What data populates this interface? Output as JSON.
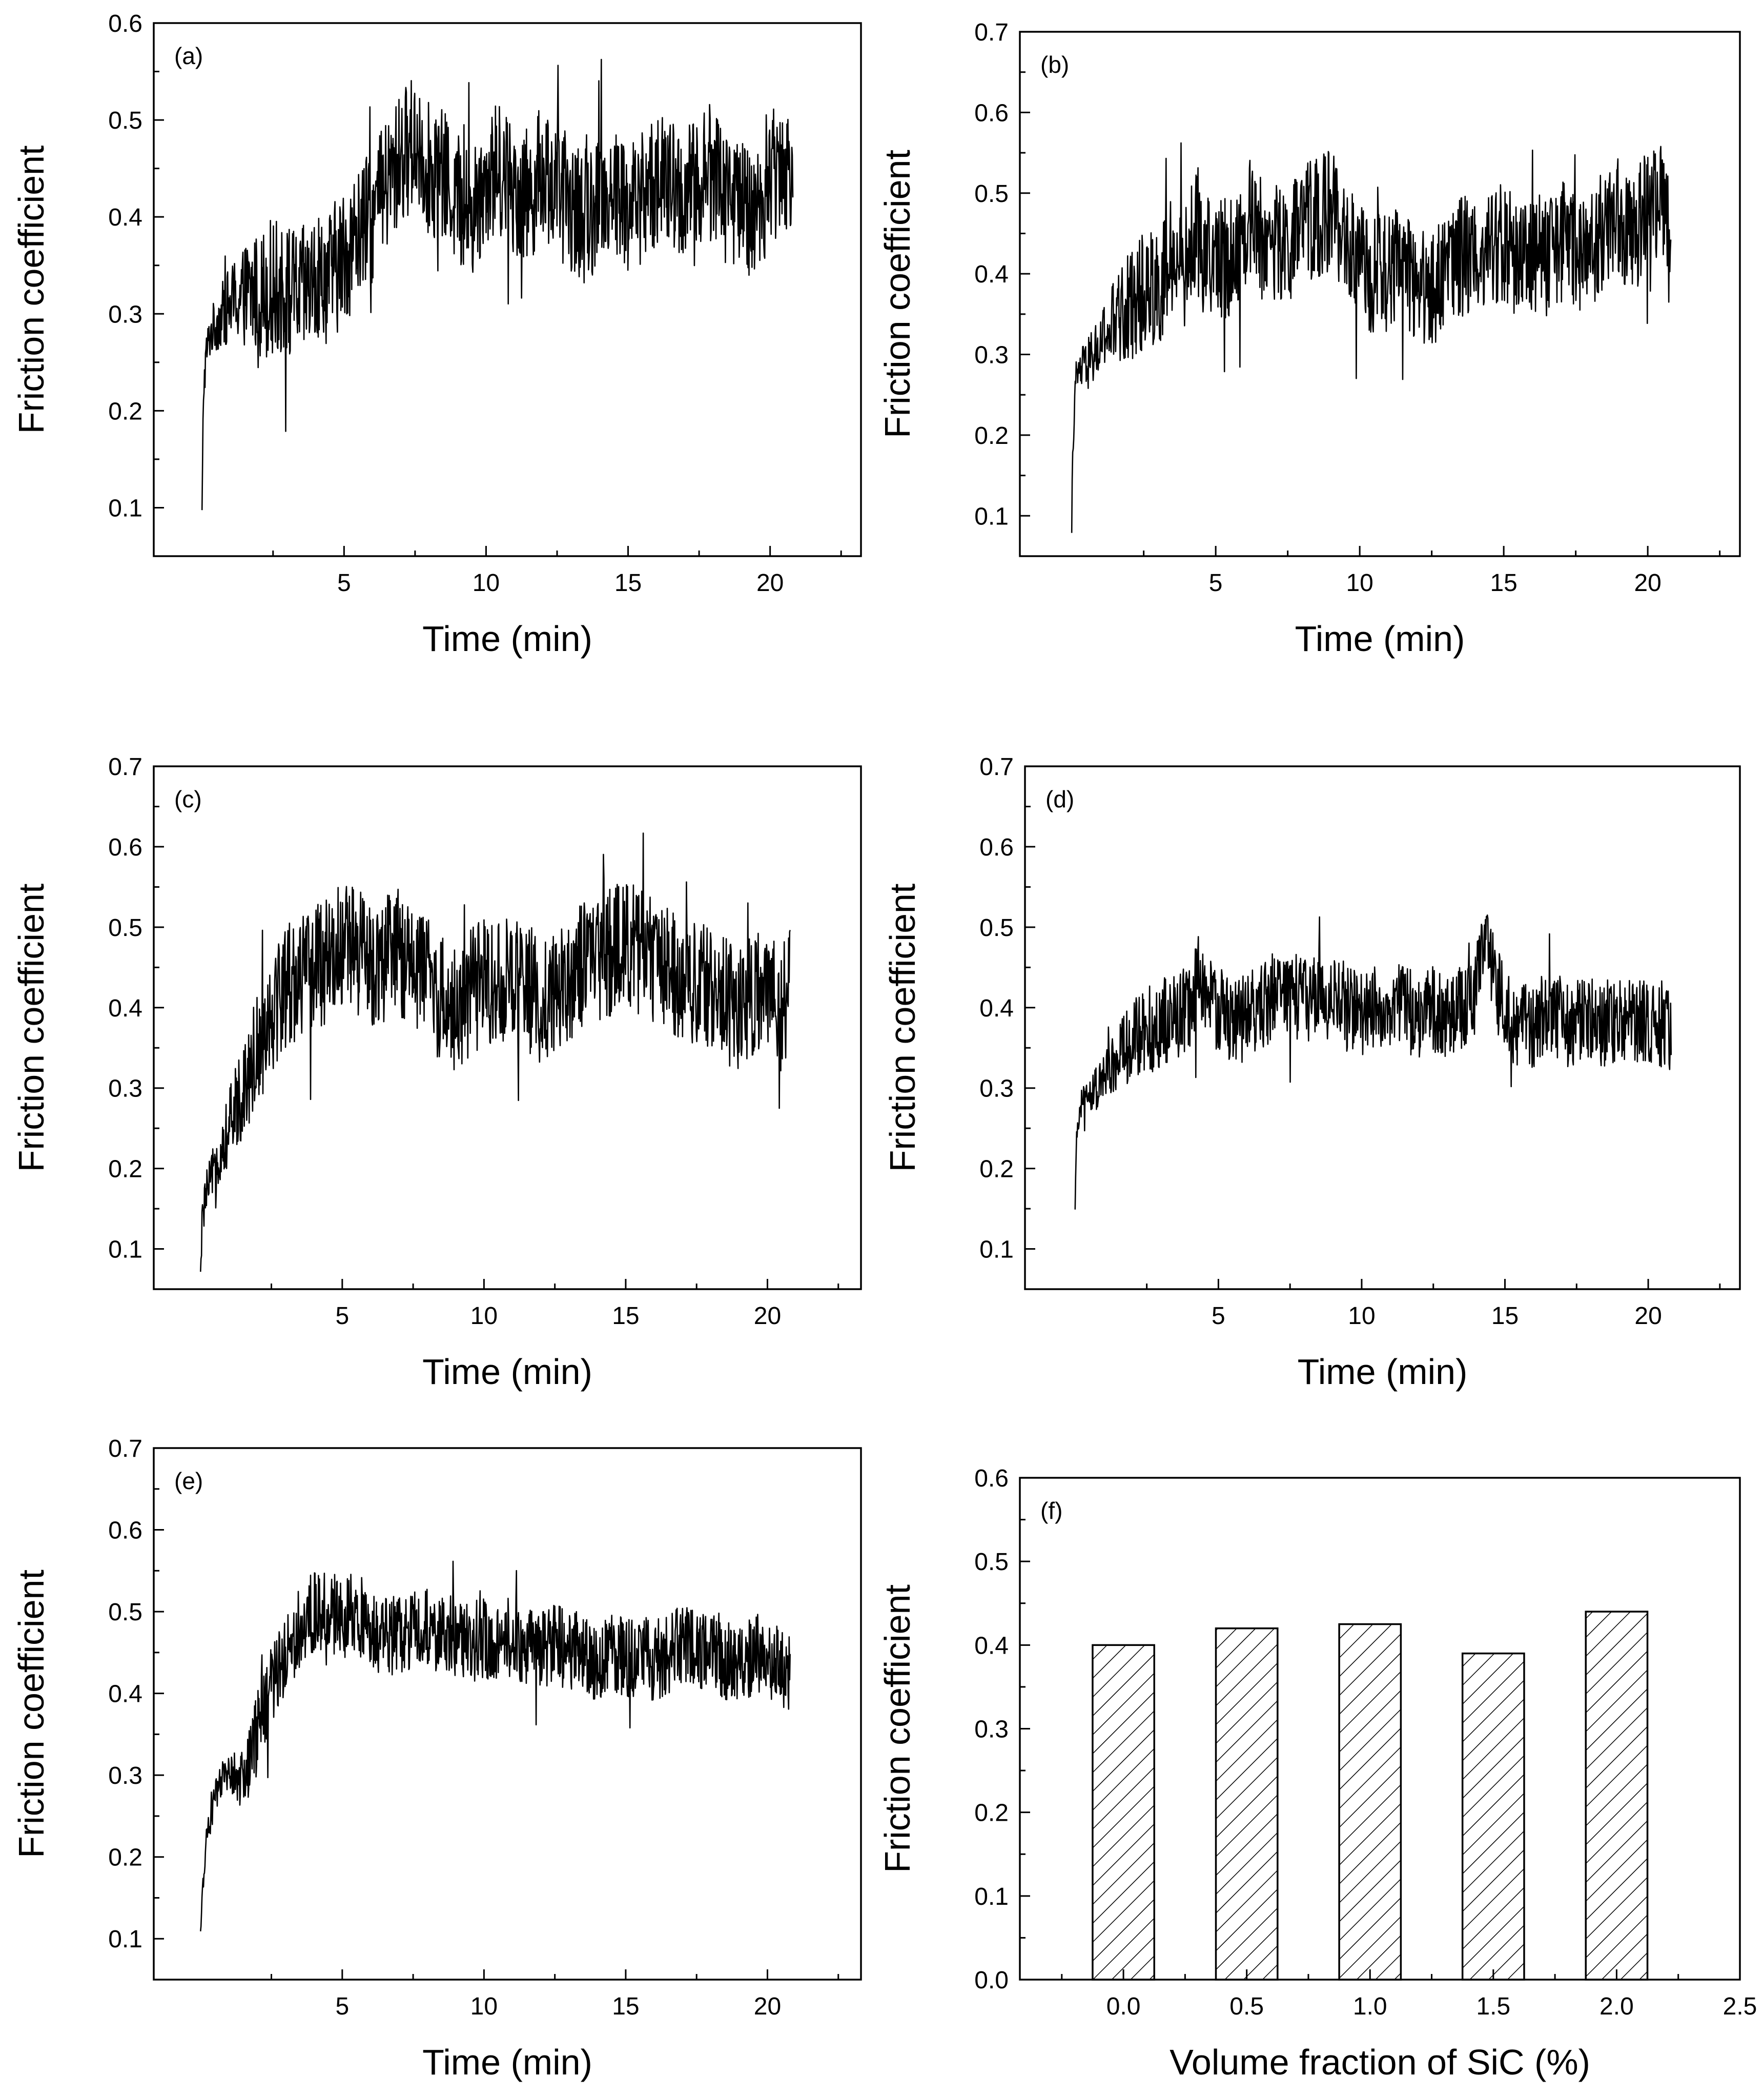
{
  "chart_data": [
    {
      "panel": "(a)",
      "type": "line",
      "xlabel": "Time (min)",
      "ylabel": "Friction coefficient",
      "xlim": [
        -1.7,
        23.2
      ],
      "ylim": [
        0.05,
        0.6
      ],
      "xticks": [
        5,
        10,
        15,
        20
      ],
      "yticks": [
        0.1,
        0.2,
        0.3,
        0.4,
        0.5,
        0.6
      ],
      "ytick_labels": [
        "0.1",
        "0.2",
        "0.3",
        "0.4",
        "0.5",
        "0.6"
      ],
      "series": [
        {
          "name": "(a)",
          "x": [
            0,
            0.05,
            0.15,
            0.3,
            0.5,
            1,
            1.5,
            2,
            2.5,
            3,
            3.5,
            4,
            4.5,
            5,
            5.5,
            6,
            6.5,
            7,
            7.5,
            8,
            8.5,
            9,
            9.5,
            10,
            10.5,
            11,
            11.5,
            12,
            12.5,
            13,
            13.5,
            14,
            14.5,
            15,
            15.5,
            16,
            16.5,
            17,
            17.5,
            18,
            18.5,
            19,
            19.5,
            20,
            20.5,
            20.8
          ],
          "y": [
            0.09,
            0.22,
            0.26,
            0.28,
            0.29,
            0.31,
            0.32,
            0.32,
            0.33,
            0.32,
            0.32,
            0.33,
            0.34,
            0.36,
            0.38,
            0.4,
            0.43,
            0.46,
            0.48,
            0.45,
            0.44,
            0.42,
            0.4,
            0.44,
            0.45,
            0.43,
            0.42,
            0.45,
            0.43,
            0.41,
            0.4,
            0.42,
            0.43,
            0.41,
            0.42,
            0.44,
            0.43,
            0.42,
            0.44,
            0.45,
            0.43,
            0.41,
            0.4,
            0.44,
            0.46,
            0.45
          ],
          "noise": 0.07
        }
      ]
    },
    {
      "panel": "(b)",
      "type": "line",
      "xlabel": "Time (min)",
      "ylabel": "Friction coefficient",
      "xlim": [
        -1.8,
        23.2
      ],
      "ylim": [
        0.05,
        0.7
      ],
      "xticks": [
        5,
        10,
        15,
        20
      ],
      "yticks": [
        0.1,
        0.2,
        0.3,
        0.4,
        0.5,
        0.6,
        0.7
      ],
      "ytick_labels": [
        "0.1",
        "0.2",
        "0.3",
        "0.4",
        "0.5",
        "0.6",
        "0.7"
      ],
      "series": [
        {
          "name": "(b)",
          "x": [
            0,
            0.05,
            0.15,
            0.3,
            0.6,
            1,
            1.5,
            2,
            2.5,
            3,
            3.5,
            4,
            4.3,
            4.6,
            5,
            5.5,
            6,
            6.3,
            6.6,
            7,
            7.5,
            8,
            8.5,
            9,
            9.5,
            10,
            10.5,
            11,
            11.5,
            12,
            12.5,
            13,
            13.5,
            14,
            14.5,
            15,
            15.5,
            16,
            16.5,
            17,
            17.5,
            18,
            18.5,
            19,
            19.5,
            20,
            20.5,
            20.8
          ],
          "y": [
            0.09,
            0.2,
            0.27,
            0.28,
            0.29,
            0.31,
            0.34,
            0.36,
            0.38,
            0.39,
            0.4,
            0.41,
            0.46,
            0.42,
            0.42,
            0.42,
            0.45,
            0.48,
            0.44,
            0.44,
            0.43,
            0.46,
            0.47,
            0.48,
            0.44,
            0.41,
            0.4,
            0.4,
            0.41,
            0.39,
            0.38,
            0.41,
            0.42,
            0.43,
            0.43,
            0.44,
            0.42,
            0.43,
            0.42,
            0.44,
            0.43,
            0.42,
            0.46,
            0.47,
            0.45,
            0.48,
            0.5,
            0.42
          ],
          "noise": 0.075
        }
      ]
    },
    {
      "panel": "(c)",
      "type": "line",
      "xlabel": "Time (min)",
      "ylabel": "Friction coefficient",
      "xlim": [
        -1.65,
        23.3
      ],
      "ylim": [
        0.05,
        0.7
      ],
      "xticks": [
        5,
        10,
        15,
        20
      ],
      "yticks": [
        0.1,
        0.2,
        0.3,
        0.4,
        0.5,
        0.6,
        0.7
      ],
      "ytick_labels": [
        "0.1",
        "0.2",
        "0.3",
        "0.4",
        "0.5",
        "0.6",
        "0.7"
      ],
      "series": [
        {
          "name": "(c)",
          "x": [
            0,
            0.05,
            0.2,
            0.5,
            1,
            1.5,
            2,
            2.5,
            3,
            3.5,
            4,
            4.5,
            5,
            5.5,
            6,
            6.5,
            7,
            7.5,
            8,
            8.5,
            9,
            9.5,
            10,
            10.5,
            11,
            11.5,
            12,
            12.5,
            13,
            13.5,
            14,
            14.5,
            15,
            15.5,
            16,
            16.5,
            17,
            17.5,
            18,
            18.5,
            19,
            19.5,
            20,
            20.5,
            20.8
          ],
          "y": [
            0.06,
            0.13,
            0.17,
            0.2,
            0.25,
            0.3,
            0.35,
            0.4,
            0.43,
            0.44,
            0.45,
            0.46,
            0.48,
            0.47,
            0.45,
            0.46,
            0.47,
            0.45,
            0.44,
            0.41,
            0.4,
            0.42,
            0.43,
            0.44,
            0.43,
            0.42,
            0.41,
            0.42,
            0.44,
            0.45,
            0.46,
            0.47,
            0.48,
            0.47,
            0.46,
            0.45,
            0.44,
            0.43,
            0.42,
            0.41,
            0.4,
            0.42,
            0.41,
            0.4,
            0.42
          ],
          "noise": 0.08
        }
      ]
    },
    {
      "panel": "(d)",
      "type": "line",
      "xlabel": "Time (min)",
      "ylabel": "Friction coefficient",
      "xlim": [
        -1.75,
        23.2
      ],
      "ylim": [
        0.05,
        0.7
      ],
      "xticks": [
        5,
        10,
        15,
        20
      ],
      "yticks": [
        0.1,
        0.2,
        0.3,
        0.4,
        0.5,
        0.6,
        0.7
      ],
      "ytick_labels": [
        "0.1",
        "0.2",
        "0.3",
        "0.4",
        "0.5",
        "0.6",
        "0.7"
      ],
      "series": [
        {
          "name": "(d)",
          "x": [
            0,
            0.05,
            0.2,
            0.5,
            1,
            1.5,
            2,
            2.5,
            3,
            3.5,
            4,
            4.3,
            4.6,
            5,
            5.5,
            6,
            6.5,
            7,
            7.5,
            8,
            8.5,
            9,
            9.5,
            10,
            10.5,
            11,
            11.5,
            12,
            12.5,
            13,
            13.5,
            14,
            14.3,
            14.6,
            15,
            15.5,
            16,
            16.5,
            17,
            17.5,
            18,
            18.5,
            19,
            19.5,
            20,
            20.5,
            20.8
          ],
          "y": [
            0.14,
            0.24,
            0.28,
            0.29,
            0.31,
            0.34,
            0.36,
            0.37,
            0.38,
            0.39,
            0.4,
            0.44,
            0.41,
            0.4,
            0.38,
            0.39,
            0.4,
            0.42,
            0.42,
            0.41,
            0.42,
            0.41,
            0.4,
            0.39,
            0.4,
            0.41,
            0.4,
            0.39,
            0.4,
            0.39,
            0.4,
            0.42,
            0.48,
            0.44,
            0.39,
            0.38,
            0.38,
            0.39,
            0.38,
            0.38,
            0.39,
            0.38,
            0.38,
            0.39,
            0.38,
            0.38,
            0.37
          ],
          "noise": 0.055
        }
      ]
    },
    {
      "panel": "(e)",
      "type": "line",
      "xlabel": "Time (min)",
      "ylabel": "Friction coefficient",
      "xlim": [
        -1.65,
        23.3
      ],
      "ylim": [
        0.05,
        0.7
      ],
      "xticks": [
        5,
        10,
        15,
        20
      ],
      "yticks": [
        0.1,
        0.2,
        0.3,
        0.4,
        0.5,
        0.6,
        0.7
      ],
      "ytick_labels": [
        "0.1",
        "0.2",
        "0.3",
        "0.4",
        "0.5",
        "0.6",
        "0.7"
      ],
      "series": [
        {
          "name": "(e)",
          "x": [
            0,
            0.05,
            0.2,
            0.5,
            1,
            1.3,
            1.6,
            2,
            2.5,
            3,
            3.5,
            4,
            4.5,
            5,
            5.5,
            6,
            6.5,
            7,
            7.5,
            8,
            8.5,
            9,
            9.5,
            10,
            10.5,
            11,
            11.5,
            12,
            12.5,
            13,
            13.5,
            14,
            14.5,
            15,
            15.5,
            16,
            16.5,
            17,
            17.5,
            18,
            18.5,
            19,
            19.5,
            20,
            20.5,
            20.8
          ],
          "y": [
            0.1,
            0.15,
            0.22,
            0.27,
            0.31,
            0.29,
            0.3,
            0.36,
            0.41,
            0.45,
            0.48,
            0.5,
            0.5,
            0.49,
            0.5,
            0.48,
            0.47,
            0.47,
            0.48,
            0.48,
            0.47,
            0.47,
            0.46,
            0.47,
            0.46,
            0.47,
            0.46,
            0.45,
            0.46,
            0.45,
            0.45,
            0.44,
            0.45,
            0.44,
            0.45,
            0.44,
            0.45,
            0.46,
            0.45,
            0.46,
            0.44,
            0.43,
            0.45,
            0.44,
            0.43,
            0.43
          ],
          "noise": 0.05
        }
      ]
    },
    {
      "panel": "(f)",
      "type": "bar",
      "xlabel": "Volume fraction of SiC (%)",
      "ylabel": "Friction coefficient",
      "xlim": [
        -0.42,
        2.5
      ],
      "ylim": [
        0.0,
        0.6
      ],
      "categories": [
        "0.0",
        "0.5",
        "1.0",
        "1.5",
        "2.0"
      ],
      "x": [
        0.0,
        0.5,
        1.0,
        1.5,
        2.0
      ],
      "values": [
        0.4,
        0.42,
        0.425,
        0.39,
        0.44
      ],
      "bar_width": 0.25,
      "xticks": [
        0.0,
        0.5,
        1.0,
        1.5,
        2.0,
        2.5
      ],
      "xtick_labels": [
        "0.0",
        "0.5",
        "1.0",
        "1.5",
        "2.0",
        "2.5"
      ],
      "yticks": [
        0.0,
        0.1,
        0.2,
        0.3,
        0.4,
        0.5,
        0.6
      ],
      "ytick_labels": [
        "0.0",
        "0.1",
        "0.2",
        "0.3",
        "0.4",
        "0.5",
        "0.6"
      ]
    }
  ]
}
